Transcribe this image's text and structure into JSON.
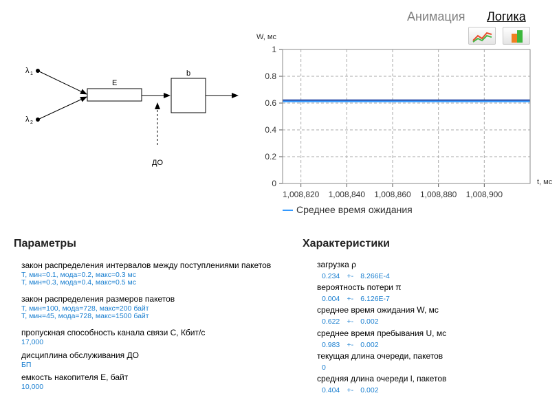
{
  "tabs": {
    "animation": "Анимация",
    "logic": "Логика"
  },
  "toolbar": {
    "line_icon": "line-chart-icon",
    "bar_icon": "bar-chart-icon"
  },
  "diagram": {
    "lambda1": "λ",
    "lambda1_sub": "1",
    "lambda2": "λ",
    "lambda2_sub": "2",
    "buffer": "E",
    "server": "b",
    "discipline": "ДО"
  },
  "chart_data": {
    "type": "line",
    "ylabel": "W, мс",
    "xlabel": "t, мс",
    "ylim": [
      0,
      1
    ],
    "xlim": [
      1008812,
      1008920
    ],
    "y_ticks": [
      0,
      0.2,
      0.4,
      0.6,
      0.8,
      1
    ],
    "y_tick_labels": [
      "0",
      "0.2",
      "0.4",
      "0.6",
      "0.8",
      "1"
    ],
    "x_ticks": [
      1008820,
      1008840,
      1008860,
      1008880,
      1008900
    ],
    "x_tick_labels": [
      "1,008,820",
      "1,008,840",
      "1,008,860",
      "1,008,880",
      "1,008,900"
    ],
    "grid": true,
    "legend": "bottom",
    "series": [
      {
        "name": "Среднее время ожидания",
        "color": "#3399ff",
        "x": [
          1008812,
          1008920
        ],
        "y": [
          0.622,
          0.622
        ]
      }
    ]
  },
  "params": {
    "title": "Параметры",
    "items": [
      {
        "label": "закон распределения интервалов между поступлениями пакетов",
        "values": [
          "Т, мин=0.1, мода=0.2, макс=0.3 мс",
          "Т, мин=0.3, мода=0.4, макс=0.5 мс"
        ]
      },
      {
        "label": "закон распределения размеров пакетов",
        "values": [
          "Т, мин=100, мода=728, макс=200 байт",
          "Т, мин=45, мода=728, макс=1500 байт"
        ]
      },
      {
        "label": "пропускная способность канала связи C, Кбит/с",
        "values": [
          "17,000"
        ]
      },
      {
        "label": "дисциплина обслуживания ДО",
        "values": [
          "БП"
        ]
      },
      {
        "label": "емкость накопителя E, байт",
        "values": [
          "10,000"
        ]
      }
    ]
  },
  "chars": {
    "title": "Характеристики",
    "pm": "+-",
    "items": [
      {
        "label": "загрузка ρ",
        "value": "0.234",
        "err": "8.266E-4"
      },
      {
        "label": "вероятность потери π",
        "value": "0.004",
        "err": "6.126E-7"
      },
      {
        "label": "среднее время ожидания W, мс",
        "value": "0.622",
        "err": "0.002"
      },
      {
        "label": "среднее время пребывания U, мс",
        "value": "0.983",
        "err": "0.002"
      },
      {
        "label": "текущая длина очереди, пакетов",
        "value": "0",
        "err": ""
      },
      {
        "label": "средняя длина очереди l, пакетов",
        "value": "0.404",
        "err": "0.002"
      }
    ]
  }
}
